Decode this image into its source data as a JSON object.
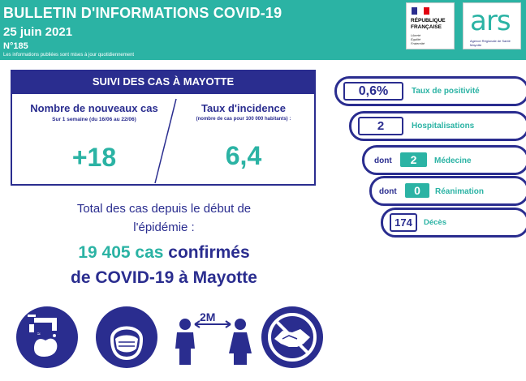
{
  "header": {
    "title": "BULLETIN D'INFORMATIONS COVID-19",
    "date": "25 juin 2021",
    "number": "N°185",
    "note": "Les informations publiées sont mises à jour quotidiennement"
  },
  "logos": {
    "rf": {
      "line1": "RÉPUBLIQUE",
      "line2": "FRANÇAISE",
      "motto1": "Liberté",
      "motto2": "Égalité",
      "motto3": "Fraternité"
    },
    "ars": {
      "word": "ars",
      "sub": "Agence Régionale de Santé Mayotte"
    }
  },
  "suivi": {
    "banner": "SUIVI DES CAS À MAYOTTE",
    "new_cases_label": "Nombre de nouveaux cas",
    "new_cases_period": "Sur 1 semaine (du 16/06 au 22/06)",
    "new_cases_value": "+18",
    "incidence_label": "Taux d'incidence",
    "incidence_sub": "(nombre de cas pour 100 000 habitants) :",
    "incidence_value": "6,4"
  },
  "totals": {
    "line1": "Total des cas depuis le début de",
    "line2": "l'épidémie :",
    "count": "19 405 cas",
    "confirmed": "confirmés",
    "line4": "de COVID-19 à Mayotte"
  },
  "indicators": {
    "positivity": {
      "value": "0,6%",
      "label": "Taux de positivité"
    },
    "hospital": {
      "value": "2",
      "label": "Hospitalisations"
    },
    "medecine": {
      "prefix": "dont",
      "value": "2",
      "label": "Médecine"
    },
    "reanimation": {
      "prefix": "dont",
      "value": "0",
      "label": "Réanimation"
    },
    "deces": {
      "value": "174",
      "label": "Décès"
    }
  },
  "icons": [
    "hand-washing-icon",
    "face-mask-icon",
    "social-distance-icon",
    "no-handshake-icon"
  ],
  "distance_label": "2M",
  "colors": {
    "navy": "#2a2d8f",
    "teal": "#2bb3a4"
  }
}
